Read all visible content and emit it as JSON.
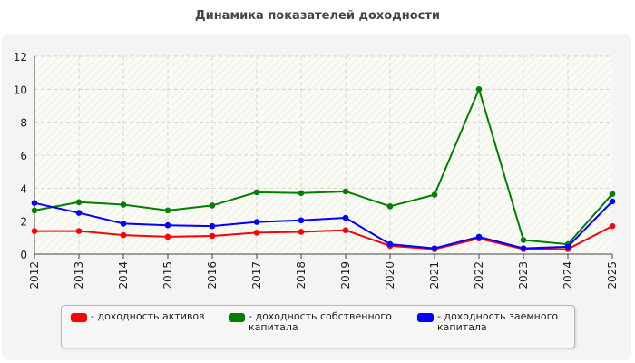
{
  "chart_data": {
    "type": "line",
    "title": "Динамика показателей доходности",
    "x": [
      "2012",
      "2013",
      "2014",
      "2015",
      "2016",
      "2017",
      "2018",
      "2019",
      "2020",
      "2021",
      "2022",
      "2023",
      "2024",
      "2025"
    ],
    "ylim": [
      0,
      12
    ],
    "yticks": [
      0,
      2,
      4,
      6,
      8,
      10,
      12
    ],
    "grid": true,
    "legend_position": "bottom",
    "series": [
      {
        "name": "- доходность активов",
        "color": "#ff0000",
        "values": [
          1.4,
          1.4,
          1.15,
          1.05,
          1.1,
          1.3,
          1.35,
          1.45,
          0.5,
          0.3,
          0.95,
          0.3,
          0.3,
          1.7
        ]
      },
      {
        "name": "- доходность собственного капитала",
        "color": "#008000",
        "values": [
          2.65,
          3.15,
          3.0,
          2.65,
          2.95,
          3.75,
          3.7,
          3.8,
          2.9,
          3.6,
          10.0,
          0.85,
          0.6,
          3.65
        ]
      },
      {
        "name": "- доходность заемного капитала",
        "color": "#0000ff",
        "values": [
          3.1,
          2.5,
          1.85,
          1.75,
          1.7,
          1.95,
          2.05,
          2.2,
          0.6,
          0.35,
          1.05,
          0.35,
          0.45,
          3.2
        ]
      }
    ]
  },
  "legend": {
    "items": [
      {
        "label": "- доходность активов",
        "color": "#ff0000"
      },
      {
        "label": "- доходность собственного капитала",
        "color": "#008000"
      },
      {
        "label": "- доходность заемного капитала",
        "color": "#0000ff"
      }
    ]
  }
}
